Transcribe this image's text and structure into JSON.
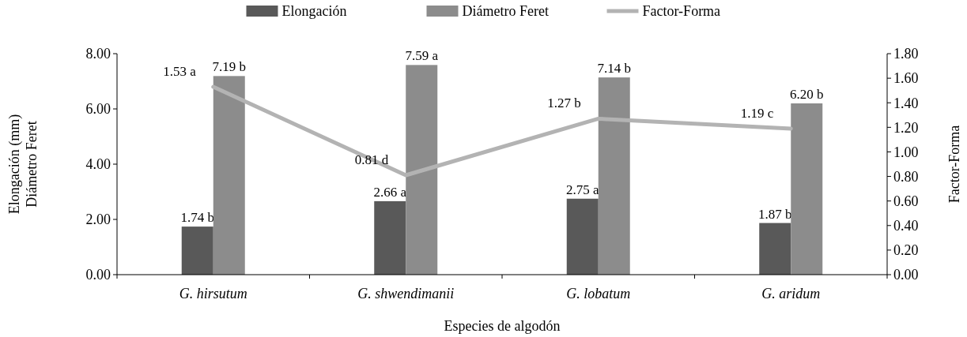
{
  "chart_data": {
    "type": "bar",
    "xlabel": "Especies de algodón",
    "ylabel": "Elongación (mm)\nDiámetro Feret",
    "y2label": "Factor-Forma",
    "categories": [
      "G. hirsutum",
      "G. shwendimanii",
      "G. lobatum",
      "G. aridum"
    ],
    "series": [
      {
        "name": "Elongación",
        "color": "#595959",
        "values": [
          1.74,
          2.66,
          2.75,
          1.87
        ],
        "value_labels": [
          "1.74 b",
          "2.66 a",
          "2.75 a",
          "1.87 b"
        ]
      },
      {
        "name": "Diámetro Feret",
        "color": "#8c8c8c",
        "values": [
          7.19,
          7.59,
          7.14,
          6.2
        ],
        "value_labels": [
          "7.19 b",
          "7.59 a",
          "7.14 b",
          "6.20 b"
        ]
      },
      {
        "name": "Factor-Forma",
        "type": "line",
        "axis": "y2",
        "color": "#b3b3b3",
        "values": [
          1.53,
          0.81,
          1.27,
          1.19
        ],
        "value_labels": [
          "1.53 a",
          "0.81 d",
          "1.27 b",
          "1.19 c"
        ]
      }
    ],
    "ylim": [
      0,
      8
    ],
    "yticks": [
      {
        "value": 0,
        "label": "0.00"
      },
      {
        "value": 2,
        "label": "2.00"
      },
      {
        "value": 4,
        "label": "4.00"
      },
      {
        "value": 6,
        "label": "6.00"
      },
      {
        "value": 8,
        "label": "8.00"
      }
    ],
    "y2lim": [
      0,
      1.8
    ],
    "y2ticks": [
      {
        "value": 0,
        "label": "0.00"
      },
      {
        "value": 0.2,
        "label": "0.20"
      },
      {
        "value": 0.4,
        "label": "0.40"
      },
      {
        "value": 0.6,
        "label": "0.60"
      },
      {
        "value": 0.8,
        "label": "0.80"
      },
      {
        "value": 1,
        "label": "1.00"
      },
      {
        "value": 1.2,
        "label": "1.20"
      },
      {
        "value": 1.4,
        "label": "1.40"
      },
      {
        "value": 1.6,
        "label": "1.60"
      },
      {
        "value": 1.8,
        "label": "1.80"
      }
    ],
    "legend": "top",
    "grid": false
  }
}
